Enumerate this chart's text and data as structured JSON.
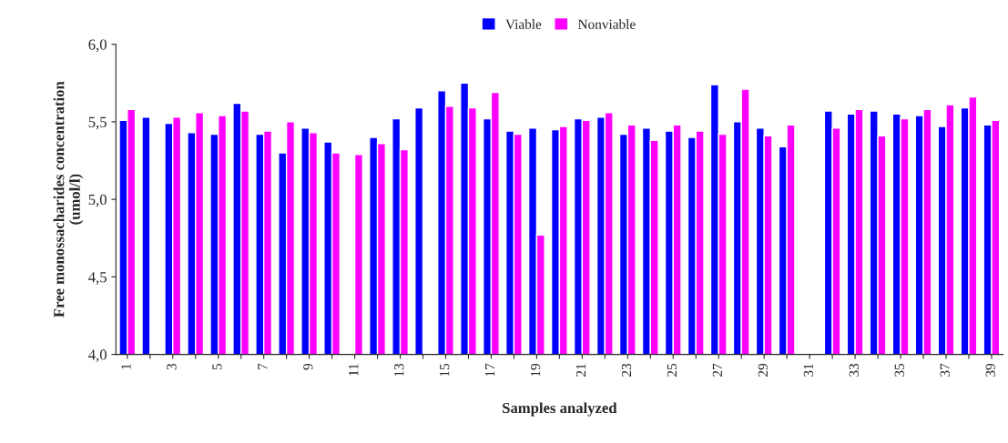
{
  "chart_data": {
    "type": "bar",
    "xlabel": "Samples analyzed",
    "ylabel": "Free monossacharides concentration\n(umol/l)",
    "categories": [
      "1",
      null,
      "3",
      null,
      "5",
      null,
      "7",
      null,
      "9",
      null,
      "11",
      null,
      "13",
      null,
      "15",
      null,
      "17",
      null,
      "19",
      null,
      "21",
      null,
      "23",
      null,
      "25",
      null,
      "27",
      null,
      "29",
      null,
      "31",
      null,
      "33",
      null,
      "35",
      null,
      "37",
      null,
      "39"
    ],
    "series": [
      {
        "name": "Viable",
        "color": "#0000ff",
        "values": [
          5.51,
          5.53,
          5.49,
          5.43,
          5.42,
          5.62,
          5.42,
          5.3,
          5.46,
          5.37,
          null,
          5.4,
          5.52,
          5.59,
          5.7,
          5.75,
          5.52,
          5.44,
          5.46,
          5.45,
          5.52,
          5.53,
          5.42,
          5.46,
          5.44,
          5.4,
          5.74,
          5.5,
          5.46,
          5.34,
          null,
          5.57,
          5.55,
          5.57,
          5.55,
          5.54,
          5.47,
          5.59,
          5.48
        ]
      },
      {
        "name": "Nonviable",
        "color": "#ff00ff",
        "values": [
          5.58,
          null,
          5.53,
          5.56,
          5.54,
          5.57,
          5.44,
          5.5,
          5.43,
          5.3,
          5.29,
          5.36,
          5.32,
          null,
          5.6,
          5.59,
          5.69,
          5.42,
          4.77,
          5.47,
          5.51,
          5.56,
          5.48,
          5.38,
          5.48,
          5.44,
          5.42,
          5.71,
          5.41,
          5.48,
          null,
          5.46,
          5.58,
          5.41,
          5.52,
          5.58,
          5.61,
          5.66,
          5.51
        ]
      }
    ],
    "ylim": [
      4.0,
      6.0
    ],
    "yticks": [
      {
        "value": 4.0,
        "label": "4,0"
      },
      {
        "value": 4.5,
        "label": "4,5"
      },
      {
        "value": 5.0,
        "label": "5,0"
      },
      {
        "value": 5.5,
        "label": "5,5"
      },
      {
        "value": 6.0,
        "label": "6,0"
      }
    ],
    "grid": false,
    "legend": "top"
  }
}
